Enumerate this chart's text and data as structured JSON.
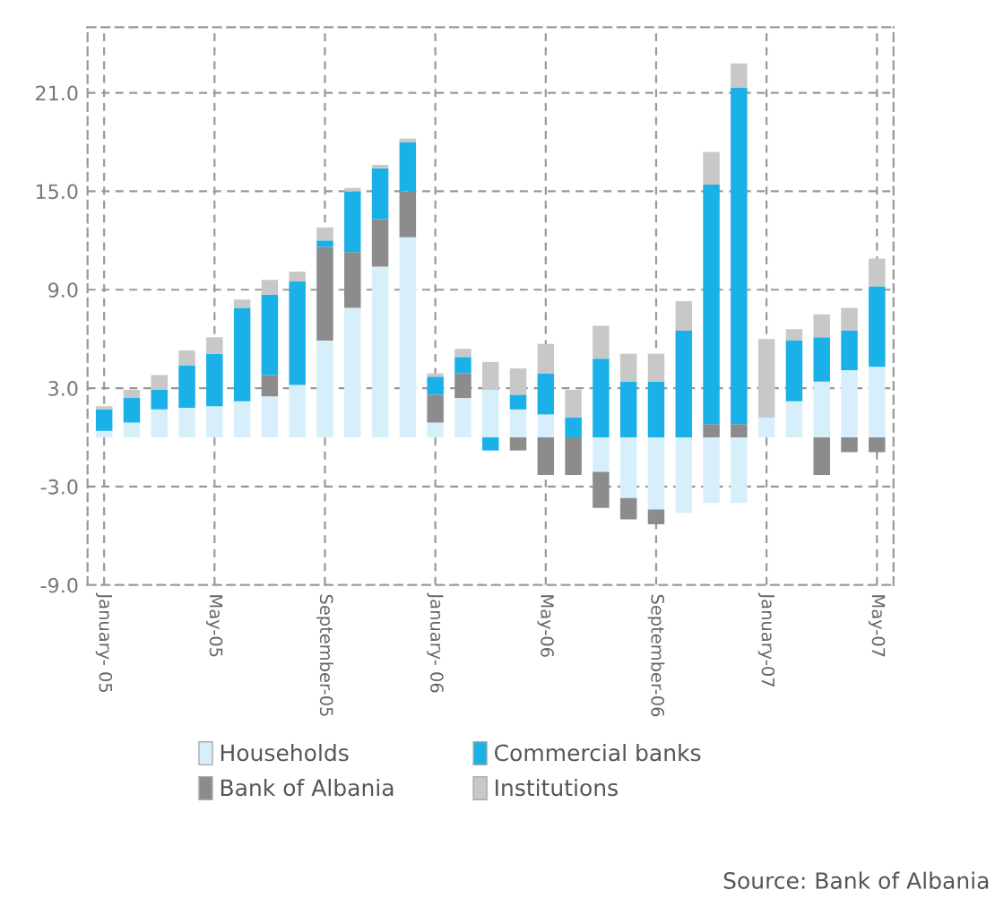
{
  "chart_data": {
    "type": "bar",
    "stacked": true,
    "categories": [
      "January- 05",
      null,
      null,
      null,
      "May-05",
      null,
      null,
      null,
      "September-05",
      null,
      null,
      null,
      "January- 06",
      null,
      null,
      null,
      "May-06",
      null,
      null,
      null,
      "September-06",
      null,
      null,
      null,
      "January-07",
      null,
      null,
      null,
      "May-07"
    ],
    "series": [
      {
        "name": "Households",
        "color": "#d6effa",
        "values": [
          0.4,
          0.9,
          1.7,
          1.8,
          1.9,
          2.2,
          2.5,
          3.2,
          5.9,
          7.9,
          10.4,
          12.2,
          0.9,
          2.4,
          2.9,
          1.7,
          1.4,
          0,
          -2.1,
          -3.7,
          -4.4,
          -4.6,
          -4.0,
          -4.0,
          1.2,
          2.2,
          3.4,
          4.1,
          4.3
        ]
      },
      {
        "name": "Bank of Albania",
        "color": "#8c8c8c",
        "values": [
          0,
          0,
          0,
          0,
          0,
          0,
          1.3,
          0,
          5.7,
          3.4,
          2.9,
          2.8,
          1.7,
          1.5,
          0,
          -0.8,
          -2.3,
          -2.3,
          -2.2,
          -1.3,
          -0.9,
          0,
          0.8,
          0.8,
          0,
          0,
          -2.3,
          -0.9,
          -0.9
        ]
      },
      {
        "name": "Commercial banks",
        "color": "#1ab0e8",
        "values": [
          1.3,
          1.5,
          1.2,
          2.6,
          3.2,
          5.7,
          4.9,
          6.3,
          0.4,
          3.7,
          3.1,
          3.0,
          1.1,
          1.0,
          -0.8,
          0.9,
          2.5,
          1.2,
          4.8,
          3.4,
          3.4,
          6.5,
          14.6,
          20.5,
          0,
          3.7,
          2.7,
          2.4,
          4.9
        ]
      },
      {
        "name": "Institutions",
        "color": "#c8c8c8",
        "values": [
          0.2,
          0.5,
          0.9,
          0.9,
          1.0,
          0.5,
          0.9,
          0.6,
          0.8,
          0.2,
          0.2,
          0.2,
          0.2,
          0.5,
          1.7,
          1.6,
          1.8,
          1.7,
          2.0,
          1.7,
          1.7,
          1.8,
          2.0,
          1.5,
          4.8,
          0.7,
          1.4,
          1.4,
          1.7
        ]
      }
    ],
    "ylim": [
      -9,
      25
    ],
    "yticks": [
      {
        "value": -9,
        "label": "-9.0"
      },
      {
        "value": -3,
        "label": "-3.0"
      },
      {
        "value": 3,
        "label": "3.0"
      },
      {
        "value": 9,
        "label": "9.0"
      },
      {
        "value": 15,
        "label": "15.0"
      },
      {
        "value": 21,
        "label": "21.0"
      }
    ],
    "grid": true,
    "legend": "bottom",
    "annotations": [
      "Source: Bank of Albania"
    ]
  }
}
